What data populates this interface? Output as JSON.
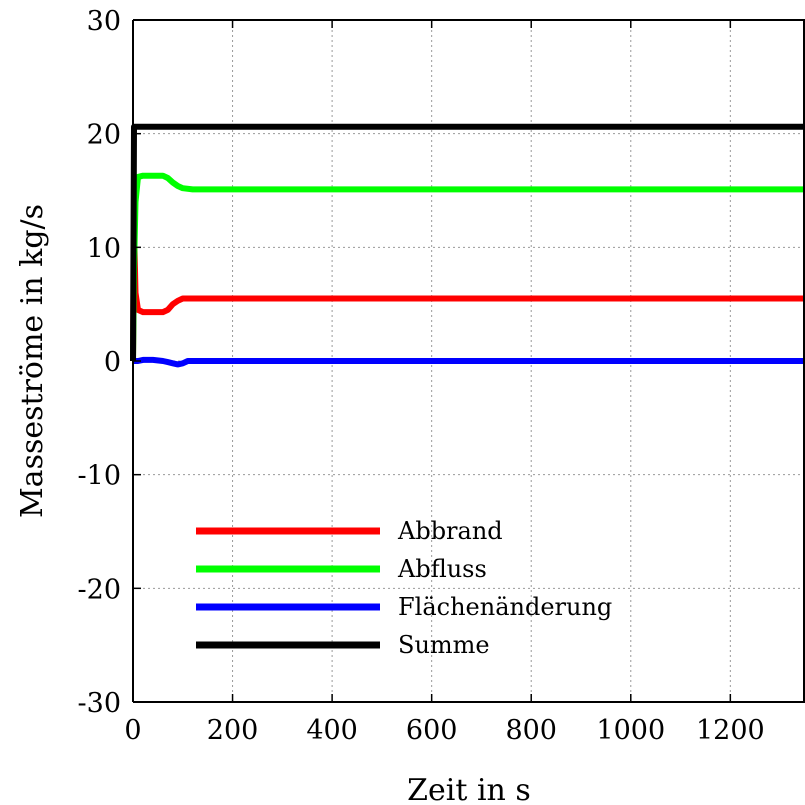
{
  "chart_data": {
    "type": "line",
    "xlabel": "Zeit in s",
    "ylabel": "Masseströme in kg/s",
    "xlim": [
      0,
      1350
    ],
    "ylim": [
      -30,
      30
    ],
    "x_ticks": [
      "0",
      "200",
      "400",
      "600",
      "800",
      "1000",
      "1200"
    ],
    "x_tick_values": [
      0,
      200,
      400,
      600,
      800,
      1000,
      1200
    ],
    "y_ticks": [
      "30",
      "20",
      "10",
      "0",
      "-10",
      "-20",
      "-30"
    ],
    "y_tick_values": [
      30,
      20,
      10,
      0,
      -10,
      -20,
      -30
    ],
    "grid": true,
    "legend_position": "bottom-left",
    "series": [
      {
        "name": "Abbrand",
        "color": "#ff0000",
        "x": [
          0,
          2,
          5,
          10,
          20,
          40,
          60,
          70,
          80,
          90,
          100,
          120,
          200,
          400,
          600,
          800,
          1000,
          1200,
          1350
        ],
        "y": [
          0,
          12,
          6,
          4.5,
          4.3,
          4.3,
          4.3,
          4.5,
          5.0,
          5.3,
          5.5,
          5.5,
          5.5,
          5.5,
          5.5,
          5.5,
          5.5,
          5.5,
          5.5
        ]
      },
      {
        "name": "Abfluss",
        "color": "#00ff00",
        "x": [
          0,
          2,
          5,
          10,
          20,
          40,
          60,
          70,
          80,
          90,
          100,
          120,
          200,
          400,
          600,
          800,
          1000,
          1200,
          1350
        ],
        "y": [
          0,
          8,
          14,
          16.2,
          16.3,
          16.3,
          16.3,
          16.1,
          15.7,
          15.4,
          15.2,
          15.1,
          15.1,
          15.1,
          15.1,
          15.1,
          15.1,
          15.1,
          15.1
        ]
      },
      {
        "name": "Flächenänderung",
        "color": "#0000ff",
        "x": [
          0,
          2,
          5,
          10,
          20,
          40,
          60,
          70,
          80,
          90,
          100,
          110,
          120,
          200,
          400,
          600,
          800,
          1000,
          1200,
          1350
        ],
        "y": [
          0,
          0,
          0,
          0,
          0.1,
          0.1,
          0,
          -0.1,
          -0.2,
          -0.3,
          -0.2,
          0,
          0,
          0,
          0,
          0,
          0,
          0,
          0,
          0
        ]
      },
      {
        "name": "Summe",
        "color": "#000000",
        "x": [
          0,
          2,
          4,
          6,
          10,
          50,
          100,
          200,
          400,
          600,
          800,
          1000,
          1200,
          1350
        ],
        "y": [
          0,
          20.6,
          20.6,
          20.6,
          20.6,
          20.6,
          20.6,
          20.6,
          20.6,
          20.6,
          20.6,
          20.6,
          20.6,
          20.6
        ]
      }
    ]
  }
}
